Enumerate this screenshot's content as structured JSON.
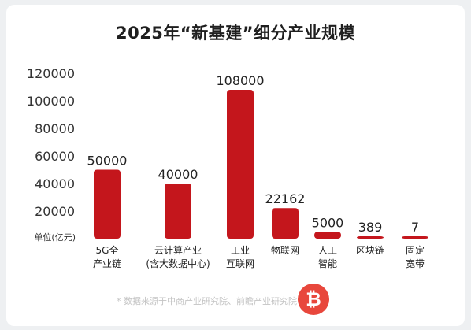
{
  "title": "2025年“新基建”细分产业规模",
  "unit_label": "单位(亿元)",
  "source_note": "* 数据来源于中商产业研究院、前瞻产业研究院",
  "chart_data": {
    "type": "bar",
    "title": "2025年“新基建”细分产业规模",
    "ylabel": "单位(亿元)",
    "ylim": [
      0,
      120000
    ],
    "yticks": [
      "120000",
      "100000",
      "80000",
      "60000",
      "40000",
      "20000"
    ],
    "categories": [
      [
        "5G全",
        "产业链"
      ],
      [
        "云计算产业",
        "(含大数据中心)"
      ],
      [
        "工业",
        "互联网"
      ],
      [
        "物联网"
      ],
      [
        "人工",
        "智能"
      ],
      [
        "区块链"
      ],
      [
        "固定",
        "宽带"
      ]
    ],
    "values": [
      50000,
      40000,
      108000,
      22162,
      5000,
      389,
      7
    ],
    "value_labels": [
      "50000",
      "40000",
      "108000",
      "22162",
      "5000",
      "389",
      "7"
    ],
    "bar_color": "#c4161c",
    "grid": false,
    "legend": "none"
  }
}
